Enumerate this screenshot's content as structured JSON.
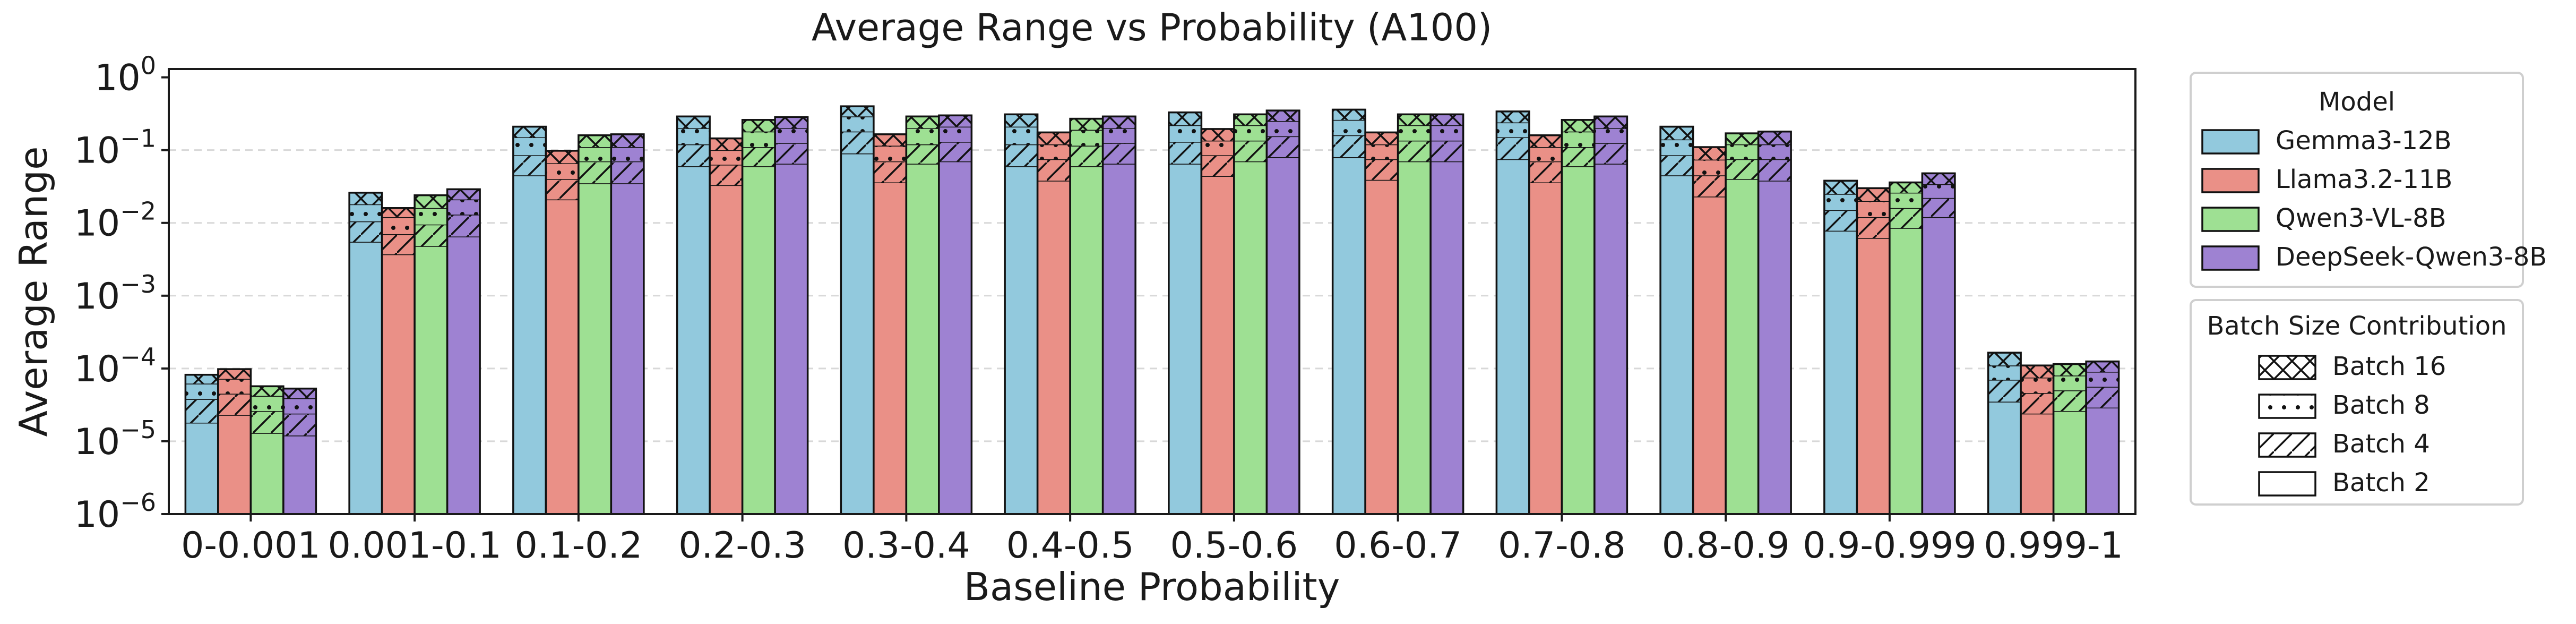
{
  "chart_data": {
    "type": "bar",
    "title": "Average Range vs Probability (A100)",
    "xlabel": "Baseline Probability",
    "ylabel": "Average Range",
    "yscale": "log",
    "ylim": [
      1e-06,
      1.3
    ],
    "y_ticks": [
      {
        "value": 1,
        "base": "10",
        "exp": "0"
      },
      {
        "value": 0.1,
        "base": "10",
        "exp": "−1"
      },
      {
        "value": 0.01,
        "base": "10",
        "exp": "−2"
      },
      {
        "value": 0.001,
        "base": "10",
        "exp": "−3"
      },
      {
        "value": 0.0001,
        "base": "10",
        "exp": "−4"
      },
      {
        "value": 1e-05,
        "base": "10",
        "exp": "−5"
      },
      {
        "value": 1e-06,
        "base": "10",
        "exp": "−6"
      }
    ],
    "grid": "y-dashed",
    "categories": [
      "0-0.001",
      "0.001-0.1",
      "0.1-0.2",
      "0.2-0.3",
      "0.3-0.4",
      "0.4-0.5",
      "0.5-0.6",
      "0.6-0.7",
      "0.7-0.8",
      "0.8-0.9",
      "0.9-0.999",
      "0.999-1"
    ],
    "batch_levels": [
      "Batch 2",
      "Batch 4",
      "Batch 8",
      "Batch 16"
    ],
    "series": [
      {
        "name": "Gemma3-12B",
        "color": "#92c9dd",
        "values": [
          [
            1.8e-05,
            3.8e-05,
            6.2e-05,
            8.2e-05
          ],
          [
            0.0055,
            0.0105,
            0.018,
            0.026
          ],
          [
            0.045,
            0.085,
            0.15,
            0.21
          ],
          [
            0.06,
            0.12,
            0.2,
            0.29
          ],
          [
            0.09,
            0.18,
            0.29,
            0.4
          ],
          [
            0.06,
            0.12,
            0.21,
            0.31
          ],
          [
            0.065,
            0.13,
            0.22,
            0.33
          ],
          [
            0.08,
            0.16,
            0.26,
            0.36
          ],
          [
            0.075,
            0.15,
            0.24,
            0.34
          ],
          [
            0.045,
            0.085,
            0.14,
            0.21
          ],
          [
            0.0078,
            0.015,
            0.025,
            0.038
          ],
          [
            3.5e-05,
            7e-05,
            0.00011,
            0.000165
          ]
        ]
      },
      {
        "name": "Llama3.2-11B",
        "color": "#ea9087",
        "values": [
          [
            2.3e-05,
            4.5e-05,
            7.2e-05,
            9.8e-05
          ],
          [
            0.0037,
            0.007,
            0.012,
            0.016
          ],
          [
            0.021,
            0.04,
            0.066,
            0.098
          ],
          [
            0.033,
            0.063,
            0.1,
            0.145
          ],
          [
            0.036,
            0.07,
            0.115,
            0.165
          ],
          [
            0.038,
            0.075,
            0.12,
            0.175
          ],
          [
            0.044,
            0.085,
            0.135,
            0.195
          ],
          [
            0.039,
            0.075,
            0.12,
            0.175
          ],
          [
            0.036,
            0.07,
            0.11,
            0.16
          ],
          [
            0.023,
            0.045,
            0.074,
            0.11
          ],
          [
            0.0062,
            0.012,
            0.02,
            0.03
          ],
          [
            2.4e-05,
            4.6e-05,
            7.5e-05,
            0.00011
          ]
        ]
      },
      {
        "name": "Qwen3-VL-8B",
        "color": "#9ee093",
        "values": [
          [
            1.3e-05,
            2.6e-05,
            4.2e-05,
            5.7e-05
          ],
          [
            0.0048,
            0.0095,
            0.016,
            0.024
          ],
          [
            0.035,
            0.07,
            0.11,
            0.16
          ],
          [
            0.06,
            0.11,
            0.18,
            0.26
          ],
          [
            0.065,
            0.12,
            0.2,
            0.29
          ],
          [
            0.06,
            0.115,
            0.19,
            0.27
          ],
          [
            0.07,
            0.135,
            0.22,
            0.31
          ],
          [
            0.07,
            0.135,
            0.22,
            0.31
          ],
          [
            0.06,
            0.11,
            0.18,
            0.26
          ],
          [
            0.04,
            0.075,
            0.12,
            0.17
          ],
          [
            0.0085,
            0.016,
            0.026,
            0.036
          ],
          [
            2.6e-05,
            5e-05,
            8e-05,
            0.000115
          ]
        ]
      },
      {
        "name": "DeepSeek-Qwen3-8B",
        "color": "#9e82d2",
        "values": [
          [
            1.2e-05,
            2.4e-05,
            3.9e-05,
            5.3e-05
          ],
          [
            0.0065,
            0.013,
            0.021,
            0.029
          ],
          [
            0.035,
            0.07,
            0.11,
            0.165
          ],
          [
            0.065,
            0.125,
            0.2,
            0.285
          ],
          [
            0.07,
            0.13,
            0.21,
            0.3
          ],
          [
            0.065,
            0.125,
            0.2,
            0.29
          ],
          [
            0.08,
            0.155,
            0.25,
            0.35
          ],
          [
            0.07,
            0.135,
            0.22,
            0.31
          ],
          [
            0.065,
            0.125,
            0.2,
            0.29
          ],
          [
            0.038,
            0.075,
            0.12,
            0.18
          ],
          [
            0.012,
            0.022,
            0.034,
            0.048
          ],
          [
            2.9e-05,
            5.6e-05,
            9e-05,
            0.000125
          ]
        ]
      }
    ],
    "legend_model": {
      "title": "Model",
      "entries": [
        "Gemma3-12B",
        "Llama3.2-11B",
        "Qwen3-VL-8B",
        "DeepSeek-Qwen3-8B"
      ],
      "placement": "right-top"
    },
    "legend_batch": {
      "title": "Batch Size Contribution",
      "entries": [
        "Batch 16",
        "Batch 8",
        "Batch 4",
        "Batch 2"
      ],
      "patterns": [
        "crosshatch",
        "dots",
        "diagonal",
        "plain"
      ],
      "placement": "right-middle"
    }
  }
}
